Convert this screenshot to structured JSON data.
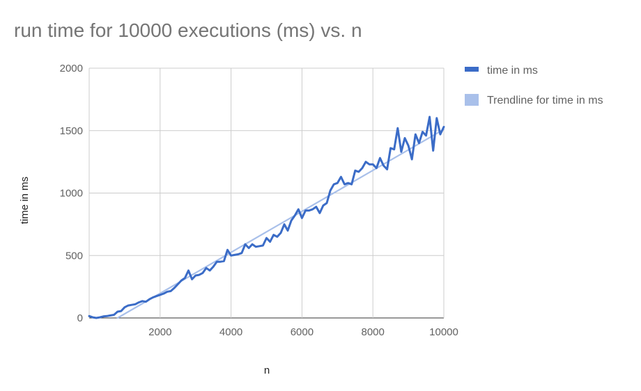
{
  "colors": {
    "series": "#3b6cc7",
    "trend": "#a9c0ea",
    "grid": "#cccccc"
  },
  "chart_data": {
    "type": "line",
    "title": "run time for 10000 executions (ms) vs. n",
    "xlabel": "n",
    "ylabel": "time in ms",
    "xlim": [
      0,
      10000
    ],
    "ylim": [
      0,
      2000
    ],
    "xticks": [
      "2000",
      "4000",
      "6000",
      "8000",
      "10000"
    ],
    "yticks": [
      "0",
      "500",
      "1000",
      "1500",
      "2000"
    ],
    "grid": true,
    "legend_position": "right",
    "series": [
      {
        "name": "time in ms",
        "x": [
          0,
          100,
          200,
          300,
          400,
          500,
          600,
          700,
          800,
          900,
          1000,
          1100,
          1200,
          1300,
          1400,
          1500,
          1600,
          1700,
          1800,
          1900,
          2000,
          2100,
          2200,
          2300,
          2400,
          2500,
          2600,
          2700,
          2800,
          2900,
          3000,
          3100,
          3200,
          3300,
          3400,
          3500,
          3600,
          3700,
          3800,
          3900,
          4000,
          4100,
          4200,
          4300,
          4400,
          4500,
          4600,
          4700,
          4800,
          4900,
          5000,
          5100,
          5200,
          5300,
          5400,
          5500,
          5600,
          5700,
          5800,
          5900,
          6000,
          6100,
          6200,
          6300,
          6400,
          6500,
          6600,
          6700,
          6800,
          6900,
          7000,
          7100,
          7200,
          7300,
          7400,
          7500,
          7600,
          7700,
          7800,
          7900,
          8000,
          8100,
          8200,
          8300,
          8400,
          8500,
          8600,
          8700,
          8800,
          8900,
          9000,
          9100,
          9200,
          9300,
          9400,
          9500,
          9600,
          9700,
          9800,
          9900,
          10000
        ],
        "y": [
          15,
          5,
          0,
          5,
          12,
          15,
          20,
          25,
          50,
          55,
          85,
          100,
          105,
          110,
          125,
          135,
          130,
          150,
          165,
          175,
          185,
          195,
          210,
          215,
          240,
          270,
          300,
          320,
          380,
          310,
          340,
          345,
          360,
          400,
          380,
          410,
          450,
          450,
          455,
          545,
          500,
          505,
          510,
          520,
          590,
          560,
          590,
          570,
          575,
          580,
          640,
          610,
          665,
          650,
          680,
          750,
          700,
          780,
          820,
          870,
          800,
          860,
          860,
          870,
          890,
          840,
          900,
          920,
          1020,
          1070,
          1080,
          1130,
          1070,
          1080,
          1070,
          1180,
          1170,
          1200,
          1250,
          1230,
          1230,
          1200,
          1280,
          1220,
          1190,
          1360,
          1350,
          1520,
          1330,
          1440,
          1380,
          1270,
          1470,
          1400,
          1490,
          1460,
          1610,
          1340,
          1600,
          1470,
          1530
        ]
      },
      {
        "name": "Trendline for time in ms",
        "x": [
          800,
          10000
        ],
        "y": [
          0,
          1510
        ]
      }
    ]
  }
}
